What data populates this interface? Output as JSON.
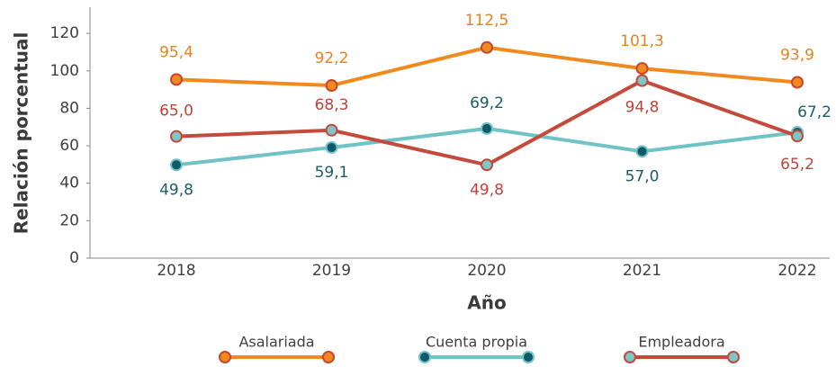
{
  "chart_data": {
    "type": "line",
    "xlabel": "Año",
    "ylabel": "Relación porcentual",
    "categories": [
      "2018",
      "2019",
      "2020",
      "2021",
      "2022"
    ],
    "ylim": [
      0,
      134
    ],
    "yticks": [
      0,
      20,
      40,
      60,
      80,
      100,
      120
    ],
    "legend": "bottom",
    "series": [
      {
        "name": "Asalariada",
        "color": "#ef8a1f",
        "marker_color": "#ef8a1f",
        "marker_edge": "#c9452f",
        "label_color": "#e8821e",
        "values": [
          95.4,
          92.2,
          112.5,
          101.3,
          93.9
        ],
        "value_labels": [
          "95,4",
          "92,2",
          "112,5",
          "101,3",
          "93,9"
        ]
      },
      {
        "name": "Cuenta propia",
        "color": "#6fc3c6",
        "marker_color": "#0f5a66",
        "marker_edge": "#6fc3c6",
        "label_color": "#1a5e6a",
        "values": [
          49.8,
          59.1,
          69.2,
          57.0,
          67.2
        ],
        "value_labels": [
          "49,8",
          "59,1",
          "69,2",
          "57,0",
          "67,2"
        ]
      },
      {
        "name": "Empleadora",
        "color": "#c44b3c",
        "marker_color": "#7fc6c8",
        "marker_edge": "#c44b3c",
        "label_color": "#c0433a",
        "values": [
          65.0,
          68.3,
          49.8,
          94.8,
          65.2
        ],
        "value_labels": [
          "65,0",
          "68,3",
          "49,8",
          "94,8",
          "65,2"
        ]
      }
    ]
  }
}
